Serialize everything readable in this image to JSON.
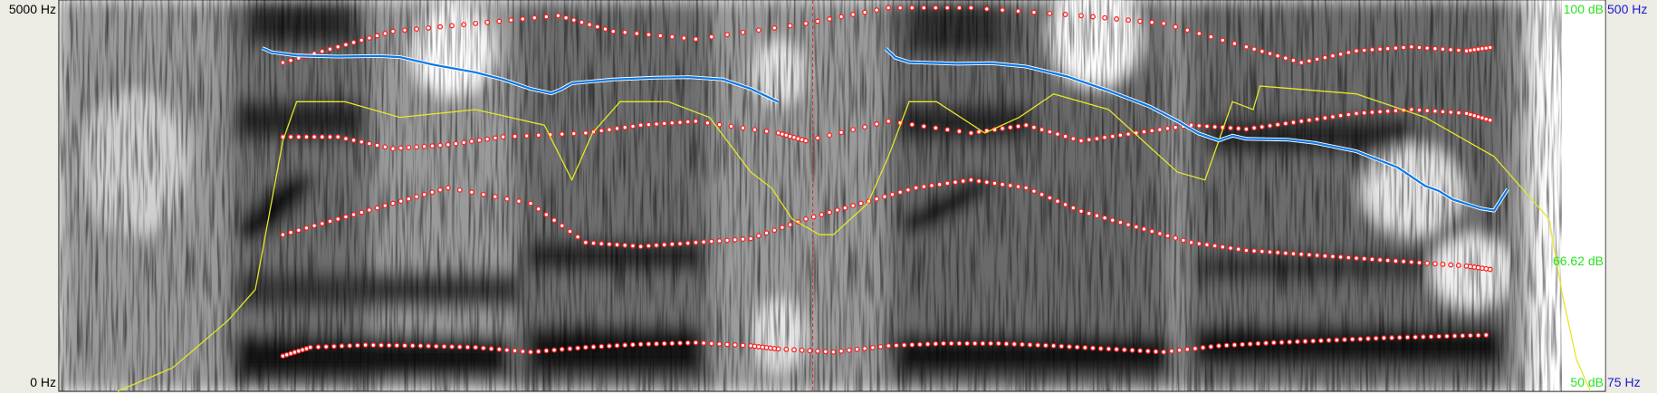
{
  "frequency_axis": {
    "top_label": "5000 Hz",
    "bottom_label": "0 Hz"
  },
  "intensity_axis": {
    "top_label": "100 dB",
    "mid_label": "66.62 dB",
    "bottom_label": "50 dB"
  },
  "pitch_axis": {
    "top_label": "500 Hz",
    "bottom_label": "75 Hz"
  },
  "colors": {
    "background": "#ecebe4",
    "spectrogram_dark": "#000000",
    "spectrogram_light": "#ffffff",
    "formant": "#ff2020",
    "pitch": "#0a78e6",
    "intensity": "#e6e628",
    "cursor": "#cc3030",
    "intensity_labels": "#29e321",
    "pitch_labels": "#1a1ad0"
  },
  "cursor": {
    "time_fraction": 0.505
  },
  "chart_data": {
    "type": "line",
    "title": "",
    "xlabel": "",
    "ylabel": "",
    "time_range": [
      0,
      1
    ],
    "pitch_range_hz": [
      75,
      500
    ],
    "intensity_range_db": [
      50,
      100
    ],
    "frequency_range_hz": [
      0,
      5000
    ],
    "pitch_segments": [
      [
        [
          0.105,
          396
        ],
        [
          0.112,
          388
        ],
        [
          0.13,
          382
        ],
        [
          0.16,
          380
        ],
        [
          0.19,
          381
        ],
        [
          0.205,
          379
        ],
        [
          0.23,
          365
        ],
        [
          0.26,
          352
        ],
        [
          0.28,
          340
        ],
        [
          0.3,
          325
        ],
        [
          0.315,
          318
        ],
        [
          0.322,
          324
        ],
        [
          0.33,
          334
        ],
        [
          0.36,
          340
        ],
        [
          0.39,
          343
        ],
        [
          0.415,
          344
        ],
        [
          0.44,
          340
        ],
        [
          0.46,
          325
        ],
        [
          0.475,
          310
        ],
        [
          0.48,
          305
        ]
      ],
      [
        [
          0.558,
          395
        ],
        [
          0.565,
          378
        ],
        [
          0.575,
          370
        ],
        [
          0.61,
          367
        ],
        [
          0.635,
          368
        ],
        [
          0.66,
          362
        ],
        [
          0.69,
          345
        ],
        [
          0.72,
          322
        ],
        [
          0.75,
          298
        ],
        [
          0.77,
          278
        ],
        [
          0.785,
          262
        ],
        [
          0.8,
          253
        ],
        [
          0.81,
          259
        ],
        [
          0.82,
          255
        ],
        [
          0.85,
          254
        ],
        [
          0.87,
          250
        ],
        [
          0.9,
          240
        ],
        [
          0.93,
          222
        ],
        [
          0.95,
          203
        ],
        [
          0.96,
          198
        ],
        [
          0.97,
          190
        ],
        [
          0.99,
          182
        ],
        [
          1.0,
          180
        ],
        [
          1.01,
          200
        ]
      ]
    ],
    "intensity_curve": [
      [
        0,
        50
      ],
      [
        0.04,
        53
      ],
      [
        0.08,
        59
      ],
      [
        0.1,
        63
      ],
      [
        0.12,
        82
      ],
      [
        0.13,
        87
      ],
      [
        0.165,
        87
      ],
      [
        0.205,
        85
      ],
      [
        0.26,
        86
      ],
      [
        0.31,
        84
      ],
      [
        0.33,
        77
      ],
      [
        0.345,
        83
      ],
      [
        0.365,
        87
      ],
      [
        0.4,
        87
      ],
      [
        0.43,
        85
      ],
      [
        0.46,
        78
      ],
      [
        0.475,
        76
      ],
      [
        0.49,
        72
      ],
      [
        0.51,
        70
      ],
      [
        0.52,
        70
      ],
      [
        0.545,
        74
      ],
      [
        0.56,
        80
      ],
      [
        0.575,
        87
      ],
      [
        0.595,
        87
      ],
      [
        0.63,
        83
      ],
      [
        0.655,
        85
      ],
      [
        0.68,
        88
      ],
      [
        0.72,
        86
      ],
      [
        0.77,
        78
      ],
      [
        0.79,
        77
      ],
      [
        0.81,
        87
      ],
      [
        0.825,
        86
      ],
      [
        0.83,
        89
      ],
      [
        0.9,
        88
      ],
      [
        0.95,
        85
      ],
      [
        1.0,
        80
      ],
      [
        1.04,
        72
      ],
      [
        1.05,
        62
      ],
      [
        1.06,
        54
      ],
      [
        1.07,
        50
      ]
    ],
    "formants_hz": {
      "F1": [
        [
          0.12,
          450
        ],
        [
          0.14,
          560
        ],
        [
          0.18,
          590
        ],
        [
          0.22,
          580
        ],
        [
          0.26,
          560
        ],
        [
          0.3,
          500
        ],
        [
          0.34,
          560
        ],
        [
          0.38,
          600
        ],
        [
          0.42,
          620
        ],
        [
          0.46,
          580
        ],
        [
          0.48,
          540
        ],
        [
          0.52,
          500
        ],
        [
          0.56,
          580
        ],
        [
          0.6,
          610
        ],
        [
          0.64,
          610
        ],
        [
          0.68,
          580
        ],
        [
          0.72,
          540
        ],
        [
          0.76,
          500
        ],
        [
          0.8,
          580
        ],
        [
          0.84,
          620
        ],
        [
          0.88,
          650
        ],
        [
          0.92,
          680
        ],
        [
          0.96,
          700
        ],
        [
          1.0,
          720
        ]
      ],
      "F2": [
        [
          0.12,
          2000
        ],
        [
          0.16,
          2200
        ],
        [
          0.2,
          2400
        ],
        [
          0.24,
          2600
        ],
        [
          0.3,
          2400
        ],
        [
          0.34,
          1900
        ],
        [
          0.38,
          1850
        ],
        [
          0.42,
          1900
        ],
        [
          0.46,
          1950
        ],
        [
          0.5,
          2200
        ],
        [
          0.54,
          2400
        ],
        [
          0.58,
          2600
        ],
        [
          0.62,
          2700
        ],
        [
          0.66,
          2600
        ],
        [
          0.7,
          2300
        ],
        [
          0.74,
          2100
        ],
        [
          0.78,
          1900
        ],
        [
          0.82,
          1800
        ],
        [
          0.86,
          1750
        ],
        [
          0.9,
          1700
        ],
        [
          0.94,
          1650
        ],
        [
          0.98,
          1600
        ],
        [
          1.0,
          1550
        ]
      ],
      "F3": [
        [
          0.12,
          3250
        ],
        [
          0.16,
          3250
        ],
        [
          0.2,
          3100
        ],
        [
          0.24,
          3150
        ],
        [
          0.28,
          3250
        ],
        [
          0.34,
          3300
        ],
        [
          0.38,
          3400
        ],
        [
          0.42,
          3450
        ],
        [
          0.48,
          3300
        ],
        [
          0.5,
          3200
        ],
        [
          0.56,
          3450
        ],
        [
          0.62,
          3300
        ],
        [
          0.66,
          3400
        ],
        [
          0.7,
          3200
        ],
        [
          0.74,
          3300
        ],
        [
          0.78,
          3400
        ],
        [
          0.82,
          3350
        ],
        [
          0.86,
          3450
        ],
        [
          0.9,
          3550
        ],
        [
          0.94,
          3600
        ],
        [
          0.98,
          3550
        ],
        [
          1.0,
          3450
        ]
      ],
      "F4": [
        [
          0.12,
          4200
        ],
        [
          0.16,
          4400
        ],
        [
          0.2,
          4600
        ],
        [
          0.26,
          4700
        ],
        [
          0.32,
          4800
        ],
        [
          0.36,
          4600
        ],
        [
          0.42,
          4500
        ],
        [
          0.5,
          4700
        ],
        [
          0.56,
          4900
        ],
        [
          0.62,
          4900
        ],
        [
          0.7,
          4800
        ],
        [
          0.76,
          4700
        ],
        [
          0.82,
          4400
        ],
        [
          0.86,
          4200
        ],
        [
          0.9,
          4350
        ],
        [
          0.94,
          4400
        ],
        [
          0.98,
          4350
        ],
        [
          1.0,
          4400
        ]
      ]
    }
  }
}
